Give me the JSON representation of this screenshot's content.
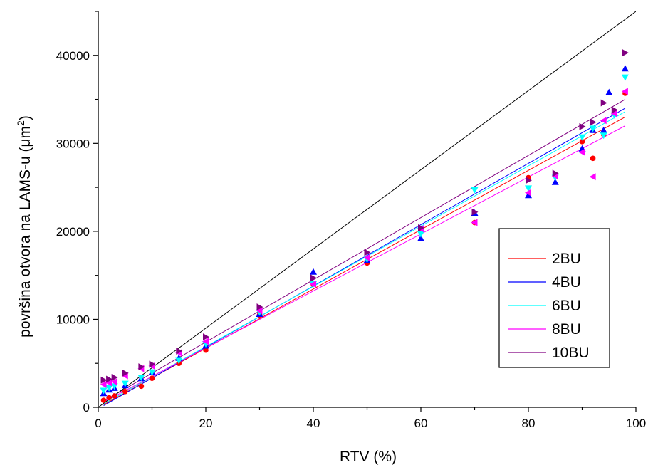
{
  "chart_data": {
    "type": "scatter",
    "title": "",
    "xlabel": "RTV (%)",
    "ylabel_main": "površina otvora na LAMS-u (",
    "ylabel_unit": "μm",
    "ylabel_sup": "2",
    "ylabel_close": ")",
    "xlim": [
      0,
      100
    ],
    "ylim": [
      0,
      45000
    ],
    "x_ticks": [
      0,
      20,
      40,
      60,
      80,
      100
    ],
    "y_ticks": [
      0,
      10000,
      20000,
      30000,
      40000
    ],
    "grid": false,
    "legend_position": "right-center",
    "reference_line": {
      "x": [
        0,
        100
      ],
      "y": [
        0,
        45000
      ],
      "color": "#000000"
    },
    "series": [
      {
        "name": "2BU",
        "color": "#ff0000",
        "marker": "circle",
        "fit": {
          "x": [
            1,
            98
          ],
          "y": [
            300,
            33000
          ]
        },
        "points": [
          [
            1,
            800
          ],
          [
            2,
            1100
          ],
          [
            3,
            1300
          ],
          [
            5,
            1800
          ],
          [
            8,
            2400
          ],
          [
            10,
            3300
          ],
          [
            15,
            5000
          ],
          [
            20,
            6500
          ],
          [
            30,
            10500
          ],
          [
            40,
            14000
          ],
          [
            50,
            16400
          ],
          [
            60,
            20100
          ],
          [
            70,
            21000
          ],
          [
            80,
            26100
          ],
          [
            90,
            30200
          ],
          [
            92,
            28300
          ],
          [
            94,
            31000
          ],
          [
            96,
            33600
          ],
          [
            98,
            35700
          ]
        ]
      },
      {
        "name": "4BU",
        "color": "#0000ff",
        "marker": "triangle-up",
        "fit": {
          "x": [
            1,
            98
          ],
          "y": [
            200,
            34000
          ]
        },
        "points": [
          [
            1,
            1600
          ],
          [
            2,
            2000
          ],
          [
            3,
            2200
          ],
          [
            5,
            2500
          ],
          [
            8,
            3300
          ],
          [
            10,
            4000
          ],
          [
            15,
            5600
          ],
          [
            20,
            7000
          ],
          [
            30,
            10600
          ],
          [
            40,
            15400
          ],
          [
            50,
            16700
          ],
          [
            60,
            19200
          ],
          [
            70,
            22100
          ],
          [
            80,
            24100
          ],
          [
            85,
            25600
          ],
          [
            90,
            29400
          ],
          [
            92,
            31500
          ],
          [
            94,
            31500
          ],
          [
            95,
            35800
          ],
          [
            96,
            33500
          ],
          [
            98,
            38500
          ]
        ]
      },
      {
        "name": "6BU",
        "color": "#00ffff",
        "marker": "triangle-down",
        "fit": {
          "x": [
            1,
            98
          ],
          "y": [
            400,
            33600
          ]
        },
        "points": [
          [
            1,
            1900
          ],
          [
            2,
            2200
          ],
          [
            3,
            2400
          ],
          [
            5,
            2700
          ],
          [
            8,
            3400
          ],
          [
            10,
            4000
          ],
          [
            15,
            5300
          ],
          [
            20,
            7200
          ],
          [
            30,
            10800
          ],
          [
            40,
            14000
          ],
          [
            50,
            16800
          ],
          [
            60,
            19700
          ],
          [
            70,
            24700
          ],
          [
            80,
            24900
          ],
          [
            85,
            26100
          ],
          [
            90,
            30700
          ],
          [
            92,
            31700
          ],
          [
            94,
            30900
          ],
          [
            96,
            33200
          ],
          [
            98,
            37500
          ]
        ]
      },
      {
        "name": "8BU",
        "color": "#ff00ff",
        "marker": "triangle-left",
        "fit": {
          "x": [
            1,
            98
          ],
          "y": [
            600,
            32000
          ]
        },
        "points": [
          [
            1,
            2600
          ],
          [
            2,
            2800
          ],
          [
            3,
            2900
          ],
          [
            5,
            3600
          ],
          [
            8,
            4400
          ],
          [
            10,
            4700
          ],
          [
            15,
            6200
          ],
          [
            20,
            7500
          ],
          [
            30,
            11000
          ],
          [
            40,
            14000
          ],
          [
            50,
            17000
          ],
          [
            60,
            20300
          ],
          [
            70,
            21000
          ],
          [
            80,
            24400
          ],
          [
            85,
            26300
          ],
          [
            90,
            29000
          ],
          [
            92,
            26200
          ],
          [
            94,
            32600
          ],
          [
            96,
            33400
          ],
          [
            98,
            35900
          ]
        ]
      },
      {
        "name": "10BU",
        "color": "#800080",
        "marker": "triangle-right",
        "fit": {
          "x": [
            1,
            98
          ],
          "y": [
            700,
            35000
          ]
        },
        "points": [
          [
            1,
            3100
          ],
          [
            2,
            3200
          ],
          [
            3,
            3400
          ],
          [
            5,
            3900
          ],
          [
            8,
            4600
          ],
          [
            10,
            4900
          ],
          [
            15,
            6400
          ],
          [
            20,
            8000
          ],
          [
            30,
            11400
          ],
          [
            40,
            14700
          ],
          [
            50,
            17600
          ],
          [
            60,
            20400
          ],
          [
            70,
            22200
          ],
          [
            80,
            25800
          ],
          [
            85,
            26600
          ],
          [
            90,
            31900
          ],
          [
            92,
            32400
          ],
          [
            94,
            34600
          ],
          [
            96,
            33800
          ],
          [
            98,
            40300
          ]
        ]
      }
    ]
  }
}
